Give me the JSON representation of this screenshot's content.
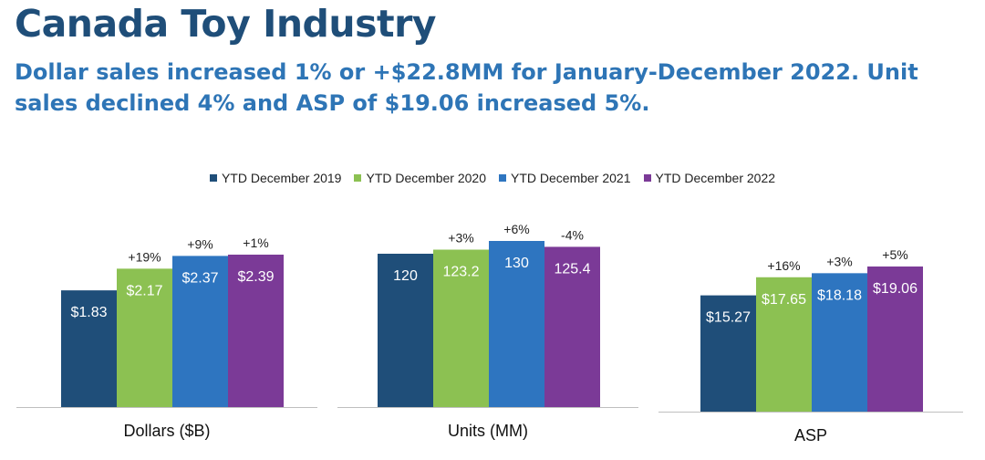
{
  "page": {
    "title": "Canada Toy Industry",
    "subtitle": "Dollar sales increased 1% or +$22.8MM for January-December 2022. Unit sales declined 4% and ASP of $19.06 increased 5%."
  },
  "colors": [
    "#1f4e79",
    "#8cc152",
    "#2e75c0",
    "#7b3a97"
  ],
  "chart_data": [
    {
      "type": "bar",
      "xlabel": "Dollars ($B)",
      "legend_position": "top-center",
      "grid": false,
      "series": [
        {
          "name": "YTD December 2019",
          "value": 1.83,
          "label": "$1.83",
          "change": ""
        },
        {
          "name": "YTD December 2020",
          "value": 2.17,
          "label": "$2.17",
          "change": "+19%"
        },
        {
          "name": "YTD December 2021",
          "value": 2.37,
          "label": "$2.37",
          "change": "+9%"
        },
        {
          "name": "YTD December 2022",
          "value": 2.39,
          "label": "$2.39",
          "change": "+1%"
        }
      ]
    },
    {
      "type": "bar",
      "xlabel": "Units (MM)",
      "grid": false,
      "series": [
        {
          "name": "YTD December 2019",
          "value": 120,
          "label": "120",
          "change": ""
        },
        {
          "name": "YTD December 2020",
          "value": 123.2,
          "label": "123.2",
          "change": "+3%"
        },
        {
          "name": "YTD December 2021",
          "value": 130,
          "label": "130",
          "change": "+6%"
        },
        {
          "name": "YTD December 2022",
          "value": 125.4,
          "label": "125.4",
          "change": "-4%"
        }
      ]
    },
    {
      "type": "bar",
      "xlabel": "ASP",
      "grid": false,
      "series": [
        {
          "name": "YTD December 2019",
          "value": 15.27,
          "label": "$15.27",
          "change": ""
        },
        {
          "name": "YTD December 2020",
          "value": 17.65,
          "label": "$17.65",
          "change": "+16%"
        },
        {
          "name": "YTD December 2021",
          "value": 18.18,
          "label": "$18.18",
          "change": "+3%"
        },
        {
          "name": "YTD December 2022",
          "value": 19.06,
          "label": "$19.06",
          "change": "+5%"
        }
      ]
    }
  ]
}
